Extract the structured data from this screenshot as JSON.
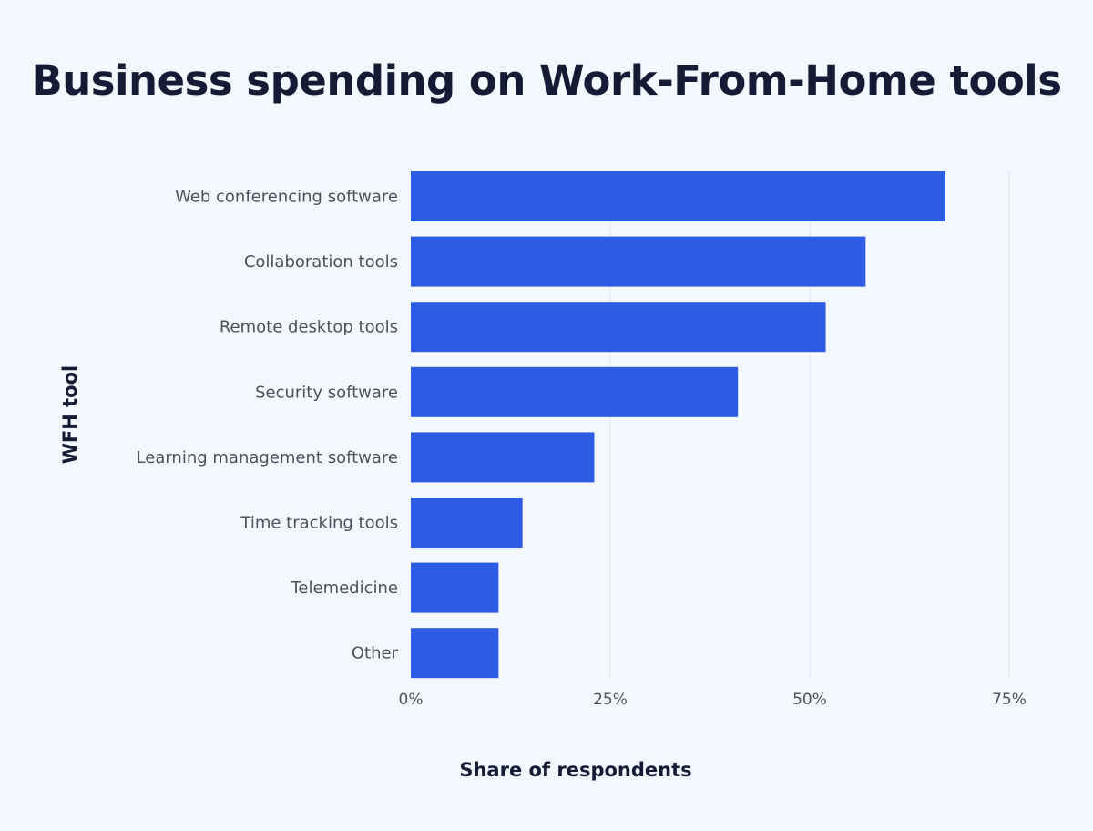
{
  "chart_data": {
    "type": "bar",
    "orientation": "horizontal",
    "title": "Business spending on Work-From-Home tools",
    "xlabel": "Share of respondents",
    "ylabel": "WFH tool",
    "categories": [
      "Web conferencing software",
      "Collaboration tools",
      "Remote desktop tools",
      "Security software",
      "Learning management software",
      "Time tracking tools",
      "Telemedicine",
      "Other"
    ],
    "values": [
      67,
      57,
      52,
      41,
      23,
      14,
      11,
      11
    ],
    "unit": "%",
    "xlim": [
      0,
      75
    ],
    "xticks": [
      "0%",
      "25%",
      "50%",
      "75%"
    ],
    "xtick_values": [
      0,
      25,
      50,
      75
    ],
    "grid": "vertical",
    "colors": {
      "bar": "#2d5be3",
      "background": "#f3f8fe",
      "grid": "#e1e6ee"
    }
  }
}
